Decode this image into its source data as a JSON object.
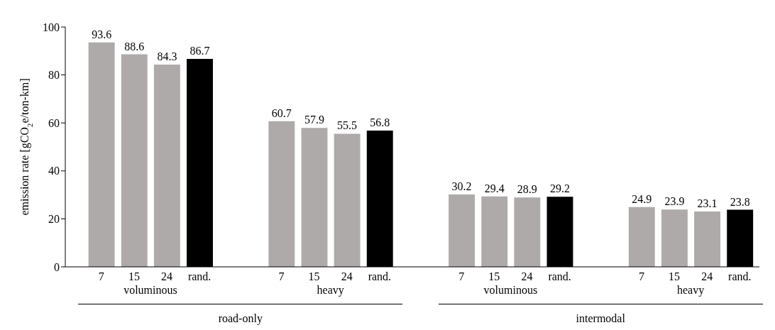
{
  "chart_data": {
    "type": "bar",
    "ylabel": "emission rate [gCO$_{2}$e/ton-km]",
    "categories": [
      "7",
      "15",
      "24",
      "rand.",
      "7",
      "15",
      "24",
      "rand.",
      "7",
      "15",
      "24",
      "rand.",
      "7",
      "15",
      "24",
      "rand."
    ],
    "values": [
      93.6,
      88.6,
      84.3,
      86.7,
      60.7,
      57.9,
      55.5,
      56.8,
      30.2,
      29.4,
      28.9,
      29.2,
      24.9,
      23.9,
      23.1,
      23.8
    ],
    "colors": [
      "#aeaaaa",
      "#aeaaaa",
      "#aeaaaa",
      "#000000",
      "#aeaaaa",
      "#aeaaaa",
      "#aeaaaa",
      "#000000",
      "#aeaaaa",
      "#aeaaaa",
      "#aeaaaa",
      "#000000",
      "#aeaaaa",
      "#aeaaaa",
      "#aeaaaa",
      "#000000"
    ],
    "ylim": [
      0,
      100
    ],
    "yticks": [
      0,
      20,
      40,
      60,
      80,
      100
    ],
    "grid": false,
    "legend": false,
    "data_labels": true,
    "annotations": [
      "voluminous",
      "heavy",
      "voluminous",
      "heavy",
      "road-only",
      "intermodal"
    ]
  }
}
